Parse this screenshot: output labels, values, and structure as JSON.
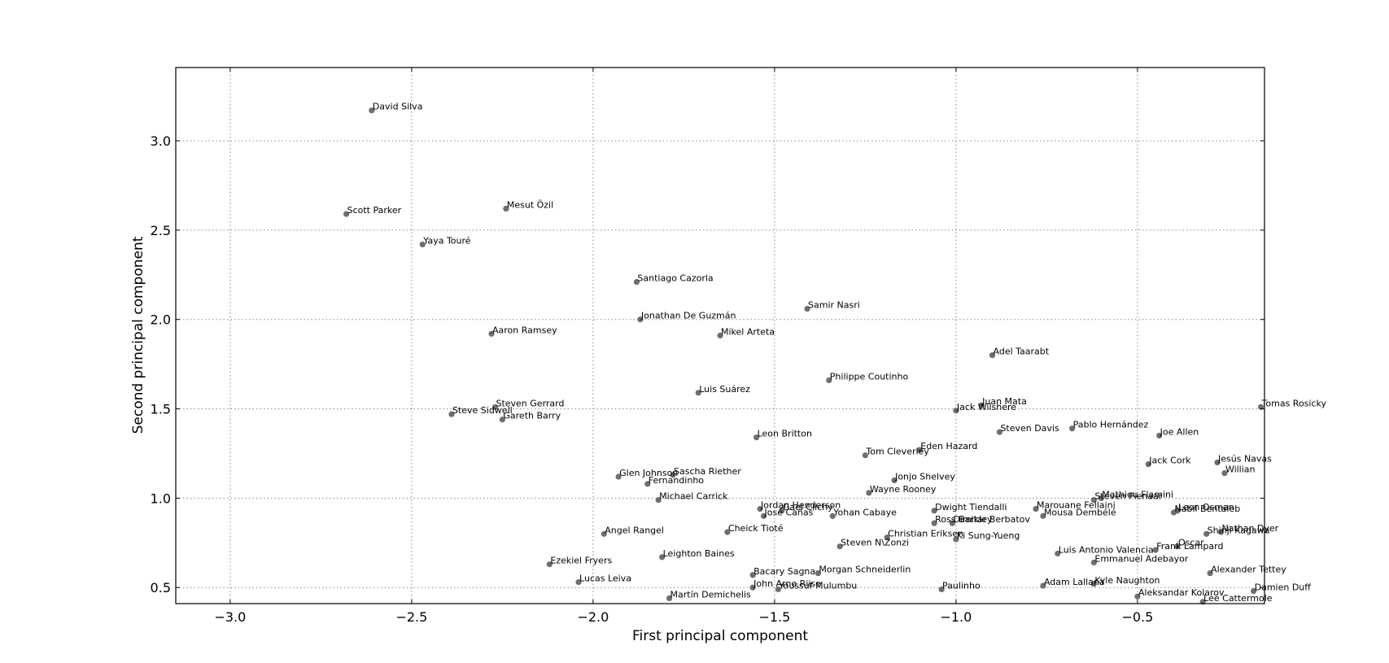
{
  "chart_data": {
    "type": "scatter",
    "title": "",
    "xlabel": "First principal component",
    "ylabel": "Second principal component",
    "xlim": [
      -3.15,
      -0.15
    ],
    "ylim": [
      0.41,
      3.41
    ],
    "xticks": [
      -3.0,
      -2.5,
      -2.0,
      -1.5,
      -1.0,
      -0.5
    ],
    "xtick_labels": [
      "−3.0",
      "−2.5",
      "−2.0",
      "−1.5",
      "−1.0",
      "−0.5"
    ],
    "yticks": [
      0.5,
      1.0,
      1.5,
      2.0,
      2.5,
      3.0
    ],
    "ytick_labels": [
      "0.5",
      "1.0",
      "1.5",
      "2.0",
      "2.5",
      "3.0"
    ],
    "grid": true,
    "marker_color": "#6f6f6f",
    "points": [
      {
        "label": "David Silva",
        "x": -2.61,
        "y": 3.17
      },
      {
        "label": "Scott Parker",
        "x": -2.68,
        "y": 2.59
      },
      {
        "label": "Mesut Özil",
        "x": -2.24,
        "y": 2.62
      },
      {
        "label": "Yaya Touré",
        "x": -2.47,
        "y": 2.42
      },
      {
        "label": "Santiago Cazorla",
        "x": -1.88,
        "y": 2.21
      },
      {
        "label": "Jonathan De Guzmán",
        "x": -1.87,
        "y": 2.0
      },
      {
        "label": "Samir Nasri",
        "x": -1.41,
        "y": 2.06
      },
      {
        "label": "Aaron Ramsey",
        "x": -2.28,
        "y": 1.92
      },
      {
        "label": "Mikel Arteta",
        "x": -1.65,
        "y": 1.91
      },
      {
        "label": "Adel Taarabt",
        "x": -0.9,
        "y": 1.8
      },
      {
        "label": "Philippe Coutinho",
        "x": -1.35,
        "y": 1.66
      },
      {
        "label": "Luis Suárez",
        "x": -1.71,
        "y": 1.59
      },
      {
        "label": "Steven Gerrard",
        "x": -2.27,
        "y": 1.51
      },
      {
        "label": "Steve Sidwell",
        "x": -2.39,
        "y": 1.47
      },
      {
        "label": "Gareth Barry",
        "x": -2.25,
        "y": 1.44
      },
      {
        "label": "Juan Mata",
        "x": -0.93,
        "y": 1.52
      },
      {
        "label": "Jack Wilshere",
        "x": -1.0,
        "y": 1.49
      },
      {
        "label": "Tomas Rosicky",
        "x": -0.16,
        "y": 1.51
      },
      {
        "label": "Pablo Hernández",
        "x": -0.68,
        "y": 1.39
      },
      {
        "label": "Steven Davis",
        "x": -0.88,
        "y": 1.37
      },
      {
        "label": "Joe Allen",
        "x": -0.44,
        "y": 1.35
      },
      {
        "label": "Leon Britton",
        "x": -1.55,
        "y": 1.34
      },
      {
        "label": "Eden Hazard",
        "x": -1.1,
        "y": 1.27
      },
      {
        "label": "Tom Cleverley",
        "x": -1.25,
        "y": 1.24
      },
      {
        "label": "Jack Cork",
        "x": -0.47,
        "y": 1.19
      },
      {
        "label": "Jesús Navas",
        "x": -0.28,
        "y": 1.2
      },
      {
        "label": "Willian",
        "x": -0.26,
        "y": 1.14
      },
      {
        "label": "Glen Johnson",
        "x": -1.93,
        "y": 1.12
      },
      {
        "label": "Sascha Riether",
        "x": -1.78,
        "y": 1.13
      },
      {
        "label": "Fernandinho",
        "x": -1.85,
        "y": 1.08
      },
      {
        "label": "Jonjo Shelvey",
        "x": -1.17,
        "y": 1.1
      },
      {
        "label": "Wayne Rooney",
        "x": -1.24,
        "y": 1.03
      },
      {
        "label": "Michael Carrick",
        "x": -1.82,
        "y": 0.99
      },
      {
        "label": "Mathieu Flamini",
        "x": -0.6,
        "y": 1.0
      },
      {
        "label": "Steven Pienaar",
        "x": -0.62,
        "y": 0.99
      },
      {
        "label": "Jordan Henderson",
        "x": -1.54,
        "y": 0.94
      },
      {
        "label": "Gael Clichy",
        "x": -1.48,
        "y": 0.93
      },
      {
        "label": "José Cañas",
        "x": -1.53,
        "y": 0.9
      },
      {
        "label": "Yohan Cabaye",
        "x": -1.34,
        "y": 0.9
      },
      {
        "label": "Dwight Tiendalli",
        "x": -1.06,
        "y": 0.93
      },
      {
        "label": "Marouane Fellaini",
        "x": -0.78,
        "y": 0.94
      },
      {
        "label": "Mousa Dembélé",
        "x": -0.76,
        "y": 0.9
      },
      {
        "label": "Nabil Bentaleb",
        "x": -0.4,
        "y": 0.92
      },
      {
        "label": "Leon Osman",
        "x": -0.39,
        "y": 0.93
      },
      {
        "label": "Ross Barkley",
        "x": -1.06,
        "y": 0.86
      },
      {
        "label": "Dimitar Berbatov",
        "x": -1.01,
        "y": 0.86
      },
      {
        "label": "Shinji Kagawa",
        "x": -0.31,
        "y": 0.8
      },
      {
        "label": "Nathan Dyer",
        "x": -0.27,
        "y": 0.81
      },
      {
        "label": "Angel Rangel",
        "x": -1.97,
        "y": 0.8
      },
      {
        "label": "Cheick Tioté",
        "x": -1.63,
        "y": 0.81
      },
      {
        "label": "Christian Eriksen",
        "x": -1.19,
        "y": 0.78
      },
      {
        "label": "Ki Sung-Yueng",
        "x": -1.0,
        "y": 0.77
      },
      {
        "label": "Steven N\\Zonzi",
        "x": -1.32,
        "y": 0.73
      },
      {
        "label": "Oscar",
        "x": -0.39,
        "y": 0.73
      },
      {
        "label": "Frank Lampard",
        "x": -0.45,
        "y": 0.71
      },
      {
        "label": "Luis Antonio Valencia",
        "x": -0.72,
        "y": 0.69
      },
      {
        "label": "Leighton Baines",
        "x": -1.81,
        "y": 0.67
      },
      {
        "label": "Emmanuel Adebayor",
        "x": -0.62,
        "y": 0.64
      },
      {
        "label": "Ezekiel Fryers",
        "x": -2.12,
        "y": 0.63
      },
      {
        "label": "Alexander Tettey",
        "x": -0.3,
        "y": 0.58
      },
      {
        "label": "Bacary Sagna",
        "x": -1.56,
        "y": 0.57
      },
      {
        "label": "Morgan Schneiderlin",
        "x": -1.38,
        "y": 0.58
      },
      {
        "label": "Lucas Leiva",
        "x": -2.04,
        "y": 0.53
      },
      {
        "label": "John Arne Riise",
        "x": -1.56,
        "y": 0.5
      },
      {
        "label": "Youssuf Mulumbu",
        "x": -1.49,
        "y": 0.49
      },
      {
        "label": "Paulinho",
        "x": -1.04,
        "y": 0.49
      },
      {
        "label": "Adam Lallana",
        "x": -0.76,
        "y": 0.51
      },
      {
        "label": "Kyle Naughton",
        "x": -0.62,
        "y": 0.52
      },
      {
        "label": "Damien Duff",
        "x": -0.18,
        "y": 0.48
      },
      {
        "label": "Martín Demichelis",
        "x": -1.79,
        "y": 0.44
      },
      {
        "label": "Aleksandar Kolarov",
        "x": -0.5,
        "y": 0.45
      },
      {
        "label": "Lee Cattermole",
        "x": -0.32,
        "y": 0.42
      }
    ]
  }
}
